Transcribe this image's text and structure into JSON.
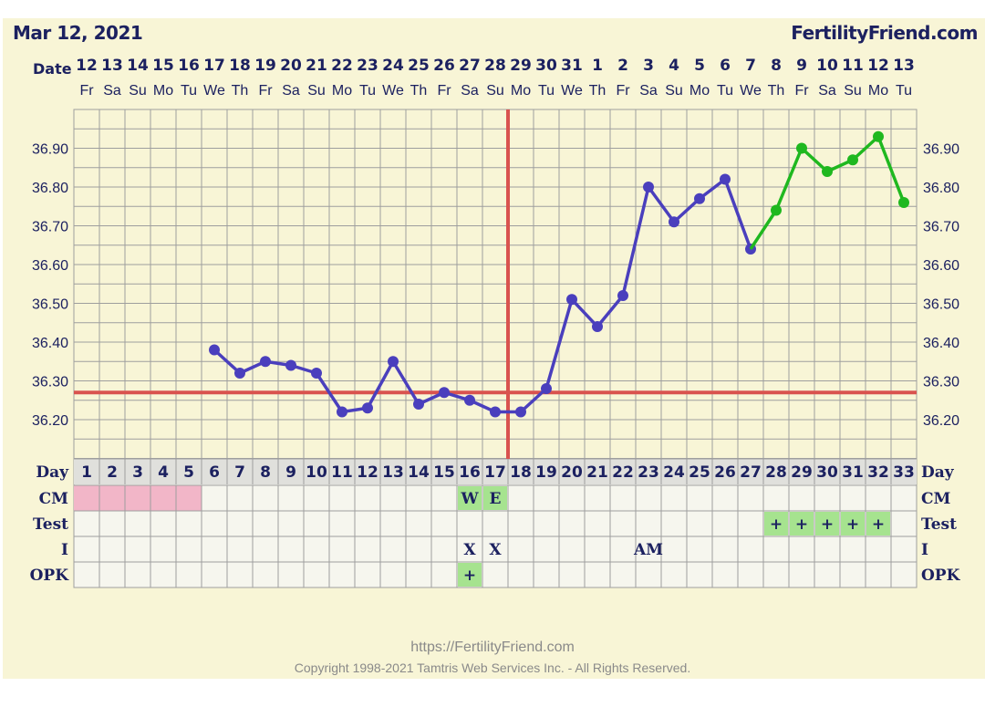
{
  "header": {
    "chart_date": "Mar 12, 2021",
    "site_name": "FertilityFriend.com",
    "date_label": "Date"
  },
  "footer": {
    "url": "https://FertilityFriend.com",
    "copyright": "Copyright 1998-2021 Tamtris Web Services Inc. - All Rights Reserved."
  },
  "colors": {
    "panel": "#f8f5d6",
    "grid": "#9e9e9e",
    "cover_line": "#d9534f",
    "temp_line": "#4a3fbd",
    "projected_line": "#1fb81f",
    "header_text": "#1c2160",
    "menstruation": "#f2b6c8",
    "fertile_marker": "#a6e38f"
  },
  "chart_data": {
    "type": "line",
    "title": "",
    "xlabel": "",
    "ylabel": "",
    "ylim": [
      36.1,
      37.0
    ],
    "y_ticks": [
      "36.90",
      "36.80",
      "36.70",
      "36.60",
      "36.50",
      "36.40",
      "36.30",
      "36.20"
    ],
    "dates": [
      "12",
      "13",
      "14",
      "15",
      "16",
      "17",
      "18",
      "19",
      "20",
      "21",
      "22",
      "23",
      "24",
      "25",
      "26",
      "27",
      "28",
      "29",
      "30",
      "31",
      "1",
      "2",
      "3",
      "4",
      "5",
      "6",
      "7",
      "8",
      "9",
      "10",
      "11",
      "12",
      "13"
    ],
    "weekdays": [
      "Fr",
      "Sa",
      "Su",
      "Mo",
      "Tu",
      "We",
      "Th",
      "Fr",
      "Sa",
      "Su",
      "Mo",
      "Tu",
      "We",
      "Th",
      "Fr",
      "Sa",
      "Su",
      "Mo",
      "Tu",
      "We",
      "Th",
      "Fr",
      "Sa",
      "Su",
      "Mo",
      "Tu",
      "We",
      "Th",
      "Fr",
      "Sa",
      "Su",
      "Mo",
      "Tu"
    ],
    "cycle_days": [
      "1",
      "2",
      "3",
      "4",
      "5",
      "6",
      "7",
      "8",
      "9",
      "10",
      "11",
      "12",
      "13",
      "14",
      "15",
      "16",
      "17",
      "18",
      "19",
      "20",
      "21",
      "22",
      "23",
      "24",
      "25",
      "26",
      "27",
      "28",
      "29",
      "30",
      "31",
      "32",
      "33"
    ],
    "series": [
      {
        "color": "#4a3fbd",
        "points": [
          [
            6,
            36.38
          ],
          [
            7,
            36.32
          ],
          [
            8,
            36.35
          ],
          [
            9,
            36.34
          ],
          [
            10,
            36.32
          ],
          [
            11,
            36.22
          ],
          [
            12,
            36.23
          ],
          [
            13,
            36.35
          ],
          [
            14,
            36.24
          ],
          [
            15,
            36.27
          ],
          [
            16,
            36.25
          ],
          [
            17,
            36.22
          ],
          [
            18,
            36.22
          ],
          [
            19,
            36.28
          ],
          [
            20,
            36.51
          ],
          [
            21,
            36.44
          ],
          [
            22,
            36.52
          ],
          [
            23,
            36.8
          ],
          [
            24,
            36.71
          ],
          [
            25,
            36.77
          ],
          [
            26,
            36.82
          ],
          [
            27,
            36.64
          ]
        ]
      },
      {
        "color": "#1fb81f",
        "points": [
          [
            27,
            36.64
          ],
          [
            28,
            36.74
          ],
          [
            29,
            36.9
          ],
          [
            30,
            36.84
          ],
          [
            31,
            36.87
          ],
          [
            32,
            36.93
          ],
          [
            33,
            36.76
          ]
        ]
      }
    ],
    "coverline_temp": 36.27,
    "ovulation_day": 18,
    "rows": [
      {
        "label": "Day",
        "cells": {}
      },
      {
        "label": "CM",
        "cells": {
          "16": "W",
          "17": "E"
        },
        "menstruation_days": [
          1,
          2,
          3,
          4,
          5
        ],
        "highlight": [
          16,
          17
        ]
      },
      {
        "label": "Test",
        "cells": {
          "28": "+",
          "29": "+",
          "30": "+",
          "31": "+",
          "32": "+"
        },
        "highlight": [
          28,
          29,
          30,
          31,
          32
        ]
      },
      {
        "label": "I",
        "cells": {
          "16": "X",
          "17": "X",
          "23": "AM"
        }
      },
      {
        "label": "OPK",
        "cells": {
          "16": "+"
        },
        "highlight": [
          16
        ]
      }
    ]
  }
}
